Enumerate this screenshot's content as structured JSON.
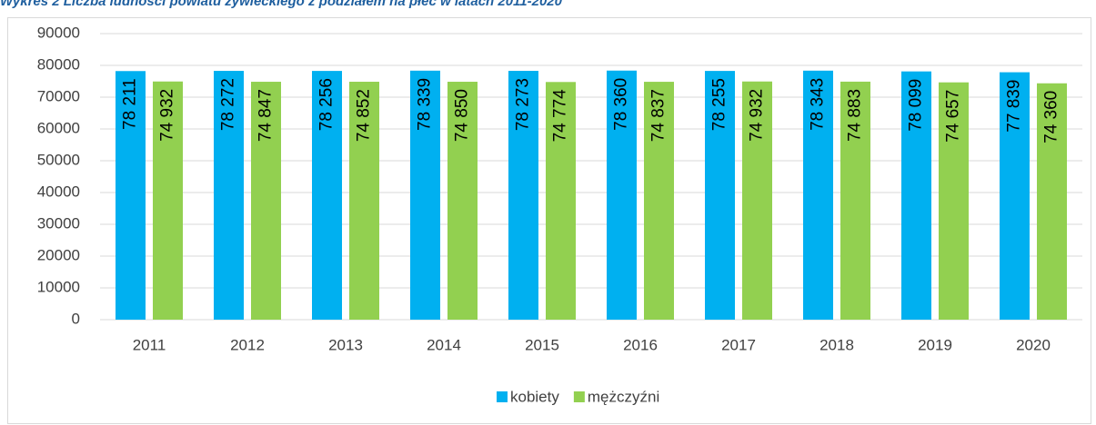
{
  "chart_data": {
    "type": "bar",
    "title": "Wykres 2 Liczba ludności powiatu żywieckiego z podziałem na płeć w latach 2011-2020",
    "categories": [
      "2011",
      "2012",
      "2013",
      "2014",
      "2015",
      "2016",
      "2017",
      "2018",
      "2019",
      "2020"
    ],
    "series": [
      {
        "name": "kobiety",
        "color": "#00b0f0",
        "values": [
          78211,
          78272,
          78256,
          78339,
          78273,
          78360,
          78255,
          78343,
          78099,
          77839
        ],
        "value_labels": [
          "78 211",
          "78 272",
          "78 256",
          "78 339",
          "78 273",
          "78 360",
          "78 255",
          "78 343",
          "78 099",
          "77 839"
        ]
      },
      {
        "name": "mężczyźni",
        "color": "#92d050",
        "values": [
          74932,
          74847,
          74852,
          74850,
          74774,
          74837,
          74932,
          74883,
          74657,
          74360
        ],
        "value_labels": [
          "74 932",
          "74 847",
          "74 852",
          "74 850",
          "74 774",
          "74 837",
          "74 932",
          "74 883",
          "74 657",
          "74 360"
        ]
      }
    ],
    "ylim": [
      0,
      90000
    ],
    "yticks": [
      0,
      10000,
      20000,
      30000,
      40000,
      50000,
      60000,
      70000,
      80000,
      90000
    ],
    "grid": true,
    "legend": "bottom"
  }
}
